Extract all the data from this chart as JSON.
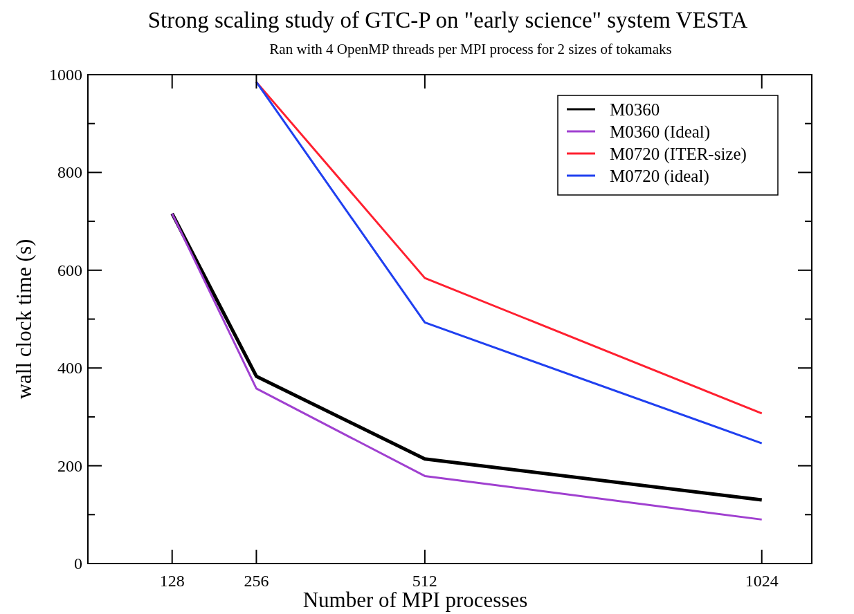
{
  "chart_data": {
    "type": "line",
    "title": "Strong scaling study of GTC-P on \"early science\" system VESTA",
    "subtitle": "Ran with 4 OpenMP threads per MPI process for 2 sizes of tokamaks",
    "xlabel": "Number of MPI processes",
    "ylabel": "wall clock time (s)",
    "xlim": [
      0,
      1100
    ],
    "xticks": [
      128,
      256,
      512,
      1024
    ],
    "ylim": [
      0,
      1000
    ],
    "yticks": [
      0,
      200,
      400,
      600,
      800,
      1000
    ],
    "legend": "top right",
    "grid": false,
    "series": [
      {
        "name": "M0360",
        "color": "#000000",
        "x": [
          128,
          256,
          512,
          1024
        ],
        "values": [
          716,
          383,
          214,
          130
        ]
      },
      {
        "name": "M0360 (Ideal)",
        "color": "#a040d0",
        "x": [
          128,
          256,
          512,
          1024
        ],
        "values": [
          716,
          358,
          179,
          90
        ]
      },
      {
        "name": "M0720 (ITER-size)",
        "color": "#ff2030",
        "x": [
          256,
          512,
          1024
        ],
        "values": [
          985,
          584,
          307
        ]
      },
      {
        "name": "M0720 (ideal)",
        "color": "#2040f0",
        "x": [
          256,
          512,
          1024
        ],
        "values": [
          985,
          493,
          246
        ]
      }
    ]
  }
}
